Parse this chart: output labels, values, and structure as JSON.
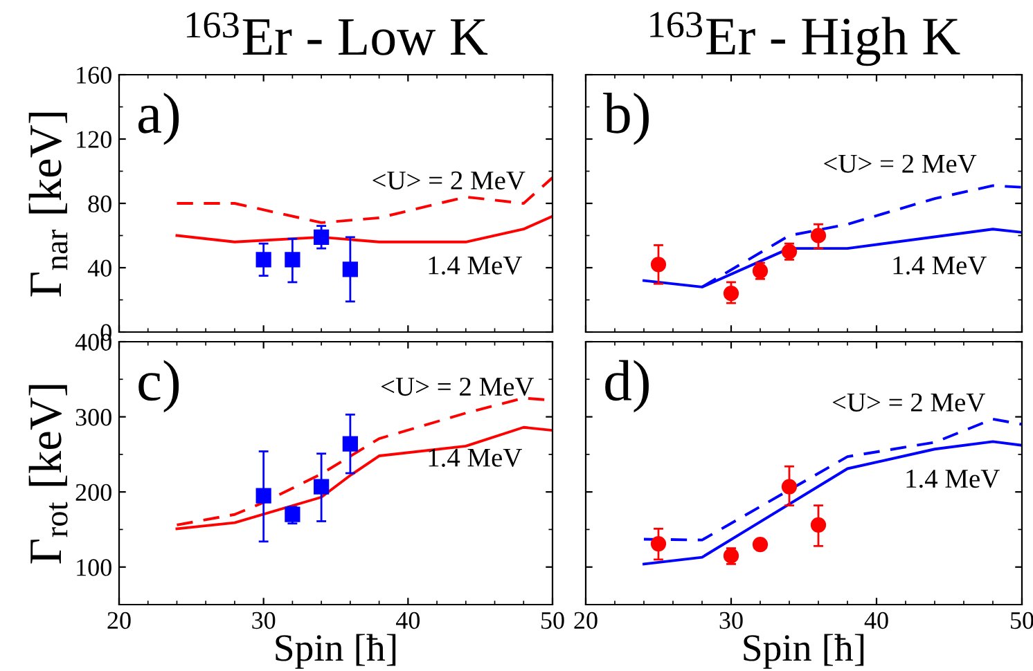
{
  "chart_data": [
    {
      "type": "line",
      "title": "$^{163}$Er - Low K",
      "ylabel": "Γ$_{nar}$ [keV]",
      "xlim": [
        20,
        50
      ],
      "xticks": [
        20,
        30,
        40,
        50
      ],
      "ylim": [
        0,
        160
      ],
      "yticks": [
        0,
        40,
        80,
        120,
        160
      ],
      "tick_labels": "y",
      "grid": false,
      "legend": false,
      "series": [
        {
          "type": "scatter",
          "color": "#0000ff",
          "marker": "square",
          "x": [
            30,
            32,
            34,
            36
          ],
          "values": [
            45,
            45,
            59,
            39
          ],
          "errors": [
            [
              35,
              55
            ],
            [
              31,
              58
            ],
            [
              52,
              66
            ],
            [
              19,
              59
            ]
          ]
        },
        {
          "type": "line",
          "color": "#ff0000",
          "marker": "none",
          "line_style": "dashed",
          "x": [
            24,
            28,
            34,
            38,
            44,
            48,
            50
          ],
          "values": [
            80,
            80,
            68,
            71,
            84,
            80,
            96
          ]
        },
        {
          "type": "line",
          "color": "#ff0000",
          "marker": "none",
          "line_style": "solid",
          "x": [
            24,
            28,
            34,
            38,
            44,
            48,
            50
          ],
          "values": [
            60,
            56,
            59,
            56,
            56,
            64,
            72
          ]
        }
      ],
      "annotations": [
        "a)",
        "<U> = 2 MeV",
        "1.4 MeV"
      ]
    },
    {
      "type": "line",
      "title": "$^{163}$Er - High K",
      "xlim": [
        20,
        50
      ],
      "xticks": [
        20,
        30,
        40,
        50
      ],
      "ylim": [
        0,
        160
      ],
      "yticks": [
        0,
        40,
        80,
        120,
        160
      ],
      "tick_labels": false,
      "grid": false,
      "legend": false,
      "series": [
        {
          "type": "scatter",
          "color": "#ff0000",
          "marker": "circle",
          "x": [
            25,
            30,
            32,
            34,
            36
          ],
          "values": [
            42,
            24,
            38,
            50,
            60
          ],
          "errors": [
            [
              30,
              54
            ],
            [
              18,
              31
            ],
            [
              33,
              43
            ],
            [
              45,
              55
            ],
            [
              52,
              67
            ]
          ]
        },
        {
          "type": "line",
          "color": "#0000ff",
          "marker": "none",
          "line_style": "dashed",
          "x": [
            28,
            34,
            38,
            44,
            48,
            50
          ],
          "values": [
            28,
            60,
            67,
            83,
            91,
            90
          ]
        },
        {
          "type": "line",
          "color": "#0000ff",
          "marker": "none",
          "line_style": "solid",
          "x": [
            24,
            28,
            34,
            38,
            48,
            50
          ],
          "values": [
            32,
            28,
            52,
            52,
            64,
            62
          ]
        }
      ],
      "annotations": [
        "b)",
        "<U> = 2 MeV",
        "1.4 MeV"
      ]
    },
    {
      "type": "line",
      "ylabel": "Γ$_{rot}$ [keV]",
      "xlabel": "Spin [ħ]",
      "xlim": [
        20,
        50
      ],
      "xticks": [
        20,
        30,
        40,
        50
      ],
      "ylim": [
        50,
        400
      ],
      "yticks": [
        100,
        200,
        300,
        400
      ],
      "grid": false,
      "legend": false,
      "series": [
        {
          "type": "scatter",
          "color": "#0000ff",
          "marker": "square",
          "x": [
            30,
            32,
            34,
            36
          ],
          "values": [
            195,
            170,
            207,
            264
          ],
          "errors": [
            [
              134,
              254
            ],
            [
              158,
              180
            ],
            [
              161,
              251
            ],
            [
              225,
              303
            ]
          ]
        },
        {
          "type": "line",
          "color": "#ff0000",
          "marker": "none",
          "line_style": "dashed",
          "x": [
            24,
            28,
            30,
            34,
            38,
            44,
            48,
            50
          ],
          "values": [
            156,
            170,
            186,
            224,
            271,
            305,
            325,
            322
          ]
        },
        {
          "type": "line",
          "color": "#ff0000",
          "marker": "none",
          "line_style": "solid",
          "x": [
            24,
            28,
            34,
            36,
            38,
            44,
            48,
            50
          ],
          "values": [
            151,
            159,
            193,
            222,
            248,
            261,
            286,
            282
          ]
        }
      ],
      "annotations": [
        "c)",
        "<U> = 2 MeV",
        "1.4 MeV"
      ]
    },
    {
      "type": "line",
      "xlabel": "Spin [ħ]",
      "xlim": [
        20,
        50
      ],
      "xticks": [
        20,
        30,
        40,
        50
      ],
      "ylim": [
        50,
        400
      ],
      "yticks": [
        100,
        200,
        300,
        400
      ],
      "tick_labels": "x",
      "grid": false,
      "legend": false,
      "series": [
        {
          "type": "scatter",
          "color": "#ff0000",
          "marker": "circle",
          "x": [
            25,
            30,
            32,
            34,
            36
          ],
          "values": [
            131,
            115,
            130,
            207,
            156
          ],
          "errors": [
            [
              110,
              151
            ],
            [
              104,
              125
            ],
            null,
            [
              182,
              234
            ],
            [
              128,
              182
            ]
          ]
        },
        {
          "type": "line",
          "color": "#0000ff",
          "marker": "none",
          "line_style": "dashed",
          "x": [
            24,
            28,
            38,
            44,
            48,
            50
          ],
          "values": [
            137,
            136,
            247,
            266,
            297,
            290
          ]
        },
        {
          "type": "line",
          "color": "#0000ff",
          "marker": "none",
          "line_style": "solid",
          "x": [
            24,
            28,
            38,
            44,
            48,
            50
          ],
          "values": [
            104,
            113,
            231,
            257,
            267,
            262
          ]
        }
      ],
      "annotations": [
        "d)",
        "<U> = 2 MeV",
        "1.4 MeV"
      ]
    }
  ]
}
